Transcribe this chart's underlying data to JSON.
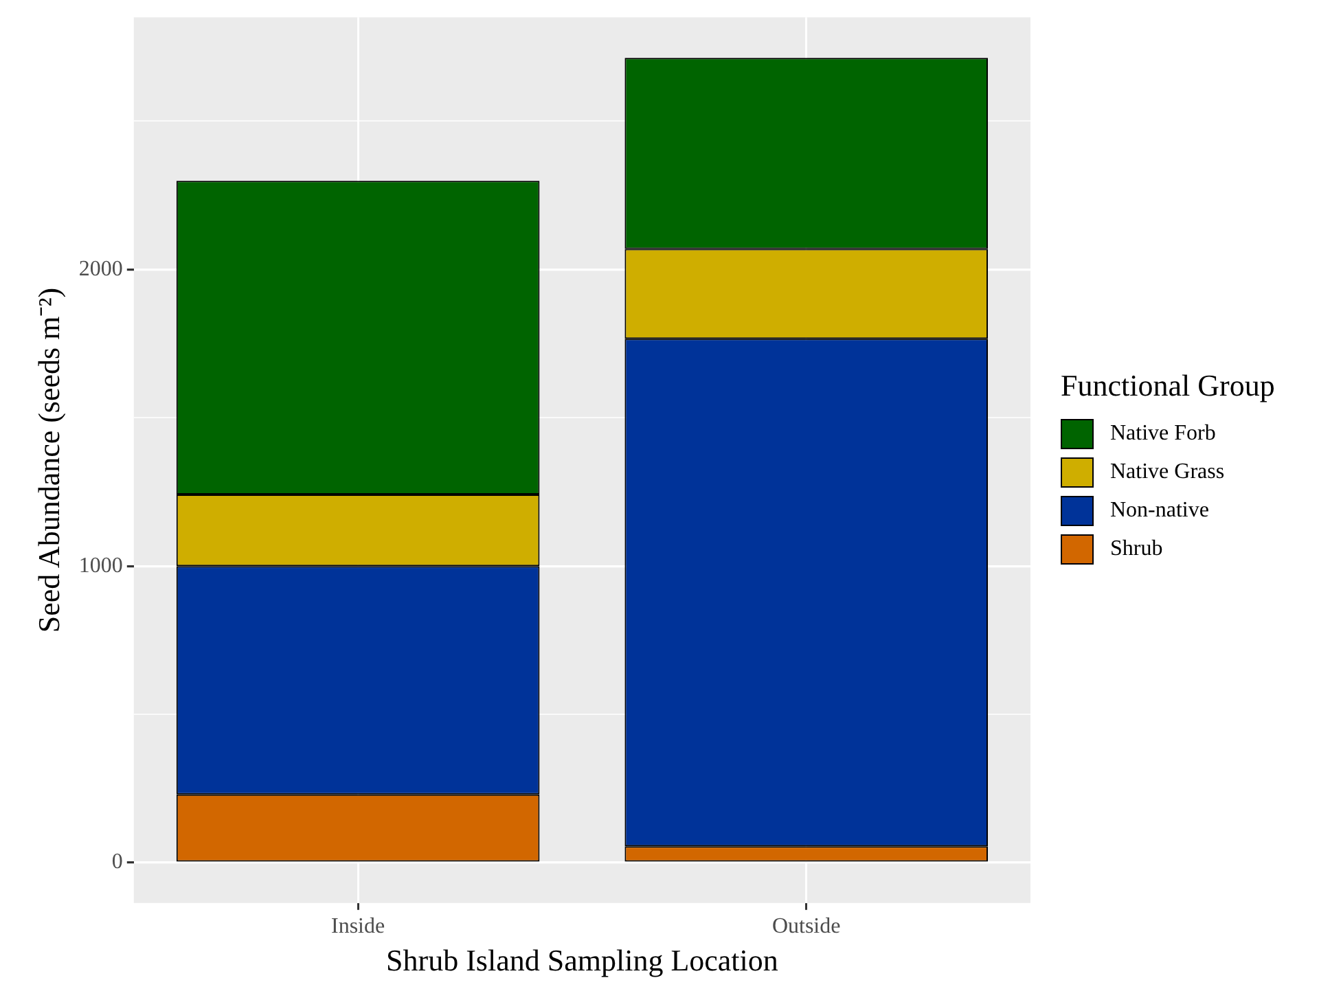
{
  "chart_data": {
    "type": "bar",
    "stacked": true,
    "xlabel": "Shrub Island Sampling Location",
    "ylabel": "Seed Abundance (seeds m⁻²)",
    "legend_title": "Functional Group",
    "legend": "right",
    "grid": true,
    "categories": [
      "Inside",
      "Outside"
    ],
    "series": [
      {
        "name": "Shrub",
        "color": "#d26700",
        "values": [
          230,
          55
        ]
      },
      {
        "name": "Non-native",
        "color": "#003399",
        "values": [
          770,
          1711
        ]
      },
      {
        "name": "Native Grass",
        "color": "#cfae00",
        "values": [
          241,
          303
        ]
      },
      {
        "name": "Native Forb",
        "color": "#006400",
        "values": [
          1058,
          644
        ]
      }
    ],
    "ylim": [
      -136,
      2850
    ],
    "yticks": [
      0,
      {
        "value": 500,
        "label": null
      },
      1000,
      {
        "value": 1500,
        "label": null
      },
      2000,
      {
        "value": 2500,
        "label": null
      }
    ]
  }
}
